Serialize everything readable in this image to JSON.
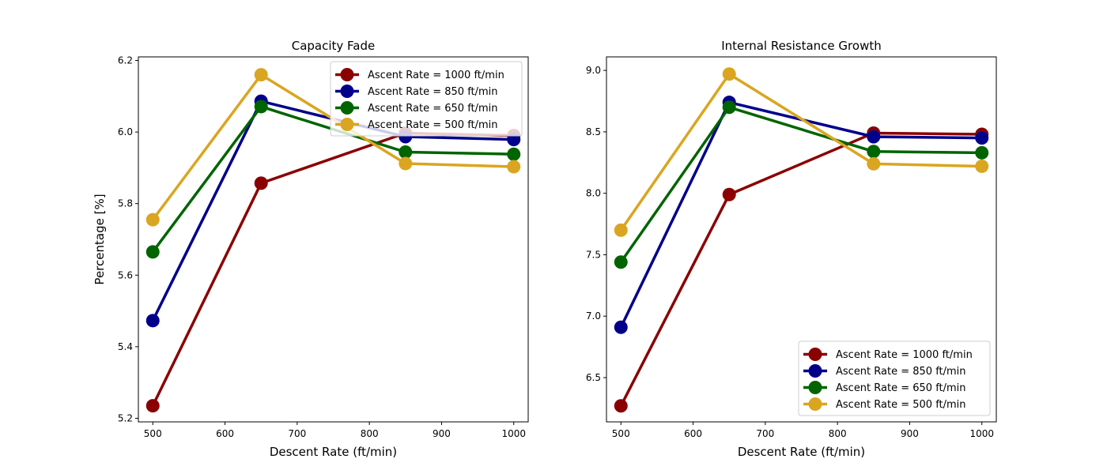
{
  "chart_data": [
    {
      "type": "line",
      "title": "Capacity Fade",
      "xlabel": "Descent Rate (ft/min)",
      "ylabel": "Percentage [%]",
      "x": [
        500,
        650,
        850,
        1000
      ],
      "xlim": [
        480,
        1020
      ],
      "ylim": [
        5.19,
        6.21
      ],
      "xticks": [
        500,
        600,
        700,
        800,
        900,
        1000
      ],
      "yticks": [
        5.2,
        5.4,
        5.6,
        5.8,
        6.0,
        6.2
      ],
      "ytick_format": 1,
      "legend_position": "upper right",
      "series": [
        {
          "name": "Ascent Rate = 1000 ft/min",
          "color": "#8b0000",
          "values": [
            5.235,
            5.857,
            5.997,
            5.99
          ]
        },
        {
          "name": "Ascent Rate = 850 ft/min",
          "color": "#00008b",
          "values": [
            5.473,
            6.086,
            5.987,
            5.979
          ]
        },
        {
          "name": "Ascent Rate = 650 ft/min",
          "color": "#006400",
          "values": [
            5.665,
            6.071,
            5.944,
            5.938
          ]
        },
        {
          "name": "Ascent Rate = 500 ft/min",
          "color": "#daa520",
          "values": [
            5.755,
            6.16,
            5.912,
            5.903
          ]
        }
      ]
    },
    {
      "type": "line",
      "title": "Internal Resistance Growth",
      "xlabel": "Descent Rate (ft/min)",
      "ylabel": "",
      "x": [
        500,
        650,
        850,
        1000
      ],
      "xlim": [
        480,
        1020
      ],
      "ylim": [
        6.14,
        9.11
      ],
      "xticks": [
        500,
        600,
        700,
        800,
        900,
        1000
      ],
      "yticks": [
        6.5,
        7.0,
        7.5,
        8.0,
        8.5,
        9.0
      ],
      "ytick_format": 1,
      "legend_position": "lower right",
      "series": [
        {
          "name": "Ascent Rate = 1000 ft/min",
          "color": "#8b0000",
          "values": [
            6.27,
            7.99,
            8.49,
            8.48
          ]
        },
        {
          "name": "Ascent Rate = 850 ft/min",
          "color": "#00008b",
          "values": [
            6.91,
            8.74,
            8.46,
            8.45
          ]
        },
        {
          "name": "Ascent Rate = 650 ft/min",
          "color": "#006400",
          "values": [
            7.44,
            8.7,
            8.34,
            8.33
          ]
        },
        {
          "name": "Ascent Rate = 500 ft/min",
          "color": "#daa520",
          "values": [
            7.7,
            8.97,
            8.24,
            8.22
          ]
        }
      ]
    }
  ]
}
